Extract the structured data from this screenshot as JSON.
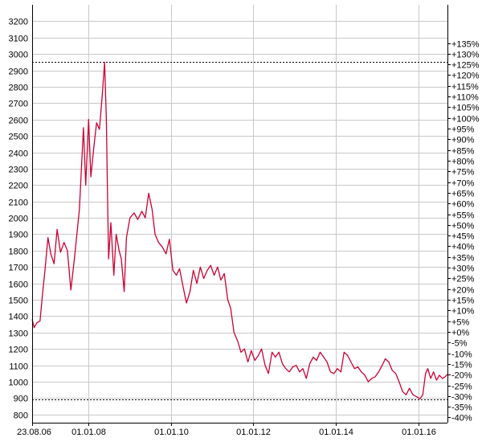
{
  "chart_data": {
    "type": "line",
    "title": "",
    "xlabel": "",
    "ylabel": "",
    "ylim": [
      750,
      3300
    ],
    "y_ticks": [
      800,
      900,
      1000,
      1100,
      1200,
      1300,
      1400,
      1500,
      1600,
      1700,
      1800,
      1900,
      2000,
      2100,
      2200,
      2300,
      2400,
      2500,
      2600,
      2700,
      2800,
      2900,
      3000,
      3100,
      3200
    ],
    "y2_ticks": [
      {
        "value": 783,
        "label": "-40%"
      },
      {
        "value": 848,
        "label": "-35%"
      },
      {
        "value": 913,
        "label": "-30%"
      },
      {
        "value": 978,
        "label": "-25%"
      },
      {
        "value": 1044,
        "label": "-20%"
      },
      {
        "value": 1109,
        "label": "-15%"
      },
      {
        "value": 1174,
        "label": "-10%"
      },
      {
        "value": 1239,
        "label": "-5%"
      },
      {
        "value": 1305,
        "label": "+0%"
      },
      {
        "value": 1370,
        "label": "+5%"
      },
      {
        "value": 1435,
        "label": "+10%"
      },
      {
        "value": 1500,
        "label": "+15%"
      },
      {
        "value": 1566,
        "label": "+20%"
      },
      {
        "value": 1631,
        "label": "+25%"
      },
      {
        "value": 1696,
        "label": "+30%"
      },
      {
        "value": 1761,
        "label": "+35%"
      },
      {
        "value": 1827,
        "label": "+40%"
      },
      {
        "value": 1892,
        "label": "+45%"
      },
      {
        "value": 1957,
        "label": "+50%"
      },
      {
        "value": 2022,
        "label": "+55%"
      },
      {
        "value": 2088,
        "label": "+60%"
      },
      {
        "value": 2153,
        "label": "+65%"
      },
      {
        "value": 2218,
        "label": "+70%"
      },
      {
        "value": 2283,
        "label": "+75%"
      },
      {
        "value": 2349,
        "label": "+80%"
      },
      {
        "value": 2414,
        "label": "+85%"
      },
      {
        "value": 2479,
        "label": "+90%"
      },
      {
        "value": 2544,
        "label": "+95%"
      },
      {
        "value": 2610,
        "label": "+100%"
      },
      {
        "value": 2675,
        "label": "+105%"
      },
      {
        "value": 2740,
        "label": "+110%"
      },
      {
        "value": 2805,
        "label": "+115%"
      },
      {
        "value": 2871,
        "label": "+120%"
      },
      {
        "value": 2936,
        "label": "+125%"
      },
      {
        "value": 3001,
        "label": "+130%"
      },
      {
        "value": 3066,
        "label": "+135%"
      }
    ],
    "x_ticks": [
      {
        "date": "2006-08-23",
        "label": "23.08.06"
      },
      {
        "date": "2008-01-01",
        "label": "01.01.08"
      },
      {
        "date": "2010-01-01",
        "label": "01.01.10"
      },
      {
        "date": "2012-01-01",
        "label": "01.01.12"
      },
      {
        "date": "2014-01-01",
        "label": "01.01.14"
      },
      {
        "date": "2016-01-01",
        "label": "01.01.16"
      }
    ],
    "x_range": [
      "2006-08-23",
      "2016-09-15"
    ],
    "reference_lines": [
      {
        "value": 2950,
        "style": "dotted"
      },
      {
        "value": 893,
        "style": "dotted"
      }
    ],
    "grid": true,
    "series": [
      {
        "color": "#cc0033",
        "points": [
          [
            "2006-08-23",
            1380
          ],
          [
            "2006-09-10",
            1330
          ],
          [
            "2006-10-05",
            1360
          ],
          [
            "2006-11-01",
            1370
          ],
          [
            "2006-11-25",
            1550
          ],
          [
            "2006-12-15",
            1680
          ],
          [
            "2007-01-10",
            1880
          ],
          [
            "2007-02-05",
            1780
          ],
          [
            "2007-03-05",
            1720
          ],
          [
            "2007-04-01",
            1930
          ],
          [
            "2007-05-01",
            1790
          ],
          [
            "2007-06-01",
            1850
          ],
          [
            "2007-07-01",
            1800
          ],
          [
            "2007-08-01",
            1560
          ],
          [
            "2007-09-01",
            1750
          ],
          [
            "2007-10-15",
            2050
          ],
          [
            "2007-11-20",
            2550
          ],
          [
            "2007-12-10",
            2200
          ],
          [
            "2008-01-05",
            2600
          ],
          [
            "2008-01-25",
            2250
          ],
          [
            "2008-02-20",
            2430
          ],
          [
            "2008-03-15",
            2580
          ],
          [
            "2008-04-10",
            2540
          ],
          [
            "2008-05-05",
            2750
          ],
          [
            "2008-05-25",
            2950
          ],
          [
            "2008-06-10",
            2600
          ],
          [
            "2008-06-20",
            2150
          ],
          [
            "2008-06-30",
            1750
          ],
          [
            "2008-07-20",
            1970
          ],
          [
            "2008-08-15",
            1650
          ],
          [
            "2008-09-05",
            1900
          ],
          [
            "2008-10-01",
            1800
          ],
          [
            "2008-10-20",
            1750
          ],
          [
            "2008-11-15",
            1550
          ],
          [
            "2008-12-05",
            1880
          ],
          [
            "2009-01-05",
            2000
          ],
          [
            "2009-02-10",
            2030
          ],
          [
            "2009-03-15",
            1990
          ],
          [
            "2009-04-20",
            2040
          ],
          [
            "2009-05-20",
            2000
          ],
          [
            "2009-06-20",
            2150
          ],
          [
            "2009-07-20",
            2050
          ],
          [
            "2009-08-15",
            1900
          ],
          [
            "2009-09-15",
            1850
          ],
          [
            "2009-10-20",
            1820
          ],
          [
            "2009-11-20",
            1780
          ],
          [
            "2009-12-20",
            1870
          ],
          [
            "2010-01-20",
            1680
          ],
          [
            "2010-02-20",
            1650
          ],
          [
            "2010-03-20",
            1690
          ],
          [
            "2010-04-20",
            1580
          ],
          [
            "2010-05-20",
            1480
          ],
          [
            "2010-06-20",
            1550
          ],
          [
            "2010-07-20",
            1680
          ],
          [
            "2010-08-20",
            1600
          ],
          [
            "2010-09-20",
            1700
          ],
          [
            "2010-10-20",
            1630
          ],
          [
            "2010-11-20",
            1680
          ],
          [
            "2010-12-20",
            1710
          ],
          [
            "2011-01-20",
            1650
          ],
          [
            "2011-02-20",
            1700
          ],
          [
            "2011-03-20",
            1620
          ],
          [
            "2011-04-20",
            1660
          ],
          [
            "2011-05-20",
            1500
          ],
          [
            "2011-06-15",
            1450
          ],
          [
            "2011-07-15",
            1300
          ],
          [
            "2011-08-15",
            1250
          ],
          [
            "2011-09-15",
            1180
          ],
          [
            "2011-10-15",
            1200
          ],
          [
            "2011-11-15",
            1120
          ],
          [
            "2011-12-15",
            1190
          ],
          [
            "2012-01-15",
            1130
          ],
          [
            "2012-02-15",
            1160
          ],
          [
            "2012-03-15",
            1200
          ],
          [
            "2012-04-15",
            1100
          ],
          [
            "2012-05-15",
            1050
          ],
          [
            "2012-06-15",
            1180
          ],
          [
            "2012-07-15",
            1150
          ],
          [
            "2012-08-15",
            1180
          ],
          [
            "2012-09-15",
            1110
          ],
          [
            "2012-10-15",
            1080
          ],
          [
            "2012-11-15",
            1060
          ],
          [
            "2012-12-15",
            1090
          ],
          [
            "2013-01-15",
            1100
          ],
          [
            "2013-02-15",
            1060
          ],
          [
            "2013-03-15",
            1080
          ],
          [
            "2013-04-15",
            1020
          ],
          [
            "2013-05-15",
            1110
          ],
          [
            "2013-06-15",
            1150
          ],
          [
            "2013-07-15",
            1130
          ],
          [
            "2013-08-15",
            1180
          ],
          [
            "2013-09-15",
            1150
          ],
          [
            "2013-10-15",
            1120
          ],
          [
            "2013-11-15",
            1060
          ],
          [
            "2013-12-15",
            1050
          ],
          [
            "2014-01-15",
            1080
          ],
          [
            "2014-02-15",
            1060
          ],
          [
            "2014-03-15",
            1180
          ],
          [
            "2014-04-15",
            1160
          ],
          [
            "2014-05-15",
            1120
          ],
          [
            "2014-06-15",
            1080
          ],
          [
            "2014-07-15",
            1090
          ],
          [
            "2014-08-15",
            1060
          ],
          [
            "2014-09-15",
            1040
          ],
          [
            "2014-10-15",
            1000
          ],
          [
            "2014-11-15",
            1020
          ],
          [
            "2014-12-15",
            1030
          ],
          [
            "2015-01-15",
            1060
          ],
          [
            "2015-02-15",
            1100
          ],
          [
            "2015-03-15",
            1140
          ],
          [
            "2015-04-15",
            1120
          ],
          [
            "2015-05-15",
            1070
          ],
          [
            "2015-06-15",
            1050
          ],
          [
            "2015-07-15",
            1000
          ],
          [
            "2015-08-15",
            940
          ],
          [
            "2015-09-15",
            920
          ],
          [
            "2015-10-15",
            960
          ],
          [
            "2015-11-15",
            920
          ],
          [
            "2015-12-15",
            910
          ],
          [
            "2016-01-15",
            895
          ],
          [
            "2016-02-10",
            920
          ],
          [
            "2016-03-05",
            1050
          ],
          [
            "2016-03-25",
            1080
          ],
          [
            "2016-04-20",
            1020
          ],
          [
            "2016-05-15",
            1060
          ],
          [
            "2016-06-10",
            1010
          ],
          [
            "2016-07-05",
            1040
          ],
          [
            "2016-08-01",
            1020
          ],
          [
            "2016-08-25",
            1030
          ],
          [
            "2016-09-15",
            1045
          ]
        ]
      }
    ]
  }
}
